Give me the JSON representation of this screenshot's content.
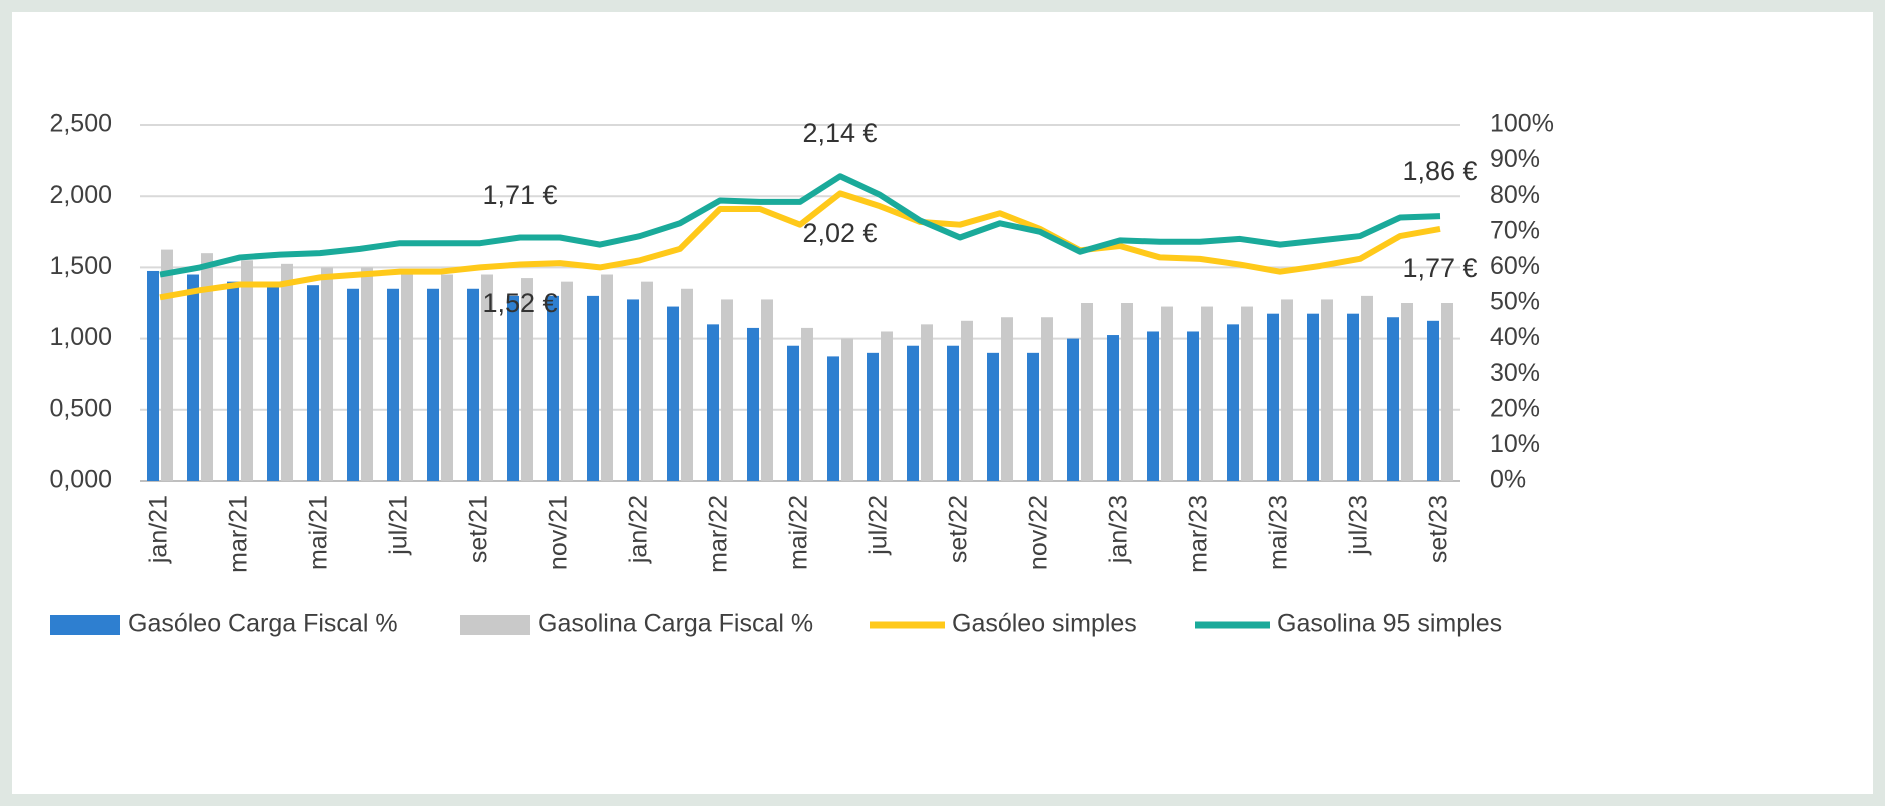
{
  "chart_data": {
    "type": "bar",
    "categories": [
      "jan/21",
      null,
      "mar/21",
      null,
      "mai/21",
      null,
      "jul/21",
      null,
      "set/21",
      null,
      "nov/21",
      null,
      "jan/22",
      null,
      "mar/22",
      null,
      "mai/22",
      null,
      "jul/22",
      null,
      "set/22",
      null,
      "nov/22",
      null,
      "jan/23",
      null,
      "mar/23",
      null,
      "mai/23",
      null,
      "jul/23",
      null,
      "set/23"
    ],
    "series": [
      {
        "name": "Gasóleo Carga Fiscal %",
        "type": "bar",
        "axis": "y2",
        "color": "#2e7fd0",
        "values": [
          59,
          58,
          56,
          56,
          55,
          54,
          54,
          54,
          54,
          52,
          52,
          52,
          51,
          49,
          44,
          43,
          38,
          35,
          36,
          38,
          38,
          36,
          36,
          40,
          41,
          42,
          42,
          44,
          47,
          47,
          47,
          46,
          45
        ]
      },
      {
        "name": "Gasolina Carga Fiscal %",
        "type": "bar",
        "axis": "y2",
        "color": "#c9c9c9",
        "values": [
          65,
          64,
          62,
          61,
          60,
          60,
          59,
          58,
          58,
          57,
          56,
          58,
          56,
          54,
          51,
          51,
          43,
          40,
          42,
          44,
          45,
          46,
          46,
          50,
          50,
          49,
          49,
          49,
          51,
          51,
          52,
          50,
          50
        ]
      },
      {
        "name": "Gasóleo simples",
        "type": "line",
        "color": "#ffc91a",
        "values": [
          1.29,
          1.34,
          1.38,
          1.38,
          1.43,
          1.45,
          1.47,
          1.47,
          1.5,
          1.52,
          1.53,
          1.5,
          1.55,
          1.63,
          1.91,
          1.91,
          1.8,
          2.02,
          1.93,
          1.82,
          1.8,
          1.88,
          1.77,
          1.62,
          1.65,
          1.57,
          1.56,
          1.52,
          1.47,
          1.51,
          1.56,
          1.72,
          1.77
        ]
      },
      {
        "name": "Gasolina 95 simples",
        "type": "line",
        "color": "#1aaa9a",
        "values": [
          1.45,
          1.5,
          1.57,
          1.59,
          1.6,
          1.63,
          1.67,
          1.67,
          1.67,
          1.71,
          1.71,
          1.66,
          1.72,
          1.81,
          1.97,
          1.96,
          1.96,
          2.14,
          2.01,
          1.83,
          1.71,
          1.81,
          1.75,
          1.61,
          1.69,
          1.68,
          1.68,
          1.7,
          1.66,
          1.69,
          1.72,
          1.85,
          1.86
        ]
      }
    ],
    "annotations": [
      "1,71 €",
      "1,52 €",
      "2,14 €",
      "2,02 €",
      "1,86 €",
      "1,77 €"
    ],
    "ylim": [
      0,
      2.5
    ],
    "yticks": [
      {
        "value": 0,
        "label": "0,000"
      },
      {
        "value": 0.5,
        "label": "0,500"
      },
      {
        "value": 1,
        "label": "1,000"
      },
      {
        "value": 1.5,
        "label": "1,500"
      },
      {
        "value": 2,
        "label": "2,000"
      },
      {
        "value": 2.5,
        "label": "2,500"
      }
    ],
    "y2lim": [
      0,
      100
    ],
    "y2ticks": [
      {
        "value": 0,
        "label": "0%"
      },
      {
        "value": 10,
        "label": "10%"
      },
      {
        "value": 20,
        "label": "20%"
      },
      {
        "value": 30,
        "label": "30%"
      },
      {
        "value": 40,
        "label": "40%"
      },
      {
        "value": 50,
        "label": "50%"
      },
      {
        "value": 60,
        "label": "60%"
      },
      {
        "value": 70,
        "label": "70%"
      },
      {
        "value": 80,
        "label": "80%"
      },
      {
        "value": 90,
        "label": "90%"
      },
      {
        "value": 100,
        "label": "100%"
      }
    ],
    "grid": true,
    "legend": "bottom"
  }
}
